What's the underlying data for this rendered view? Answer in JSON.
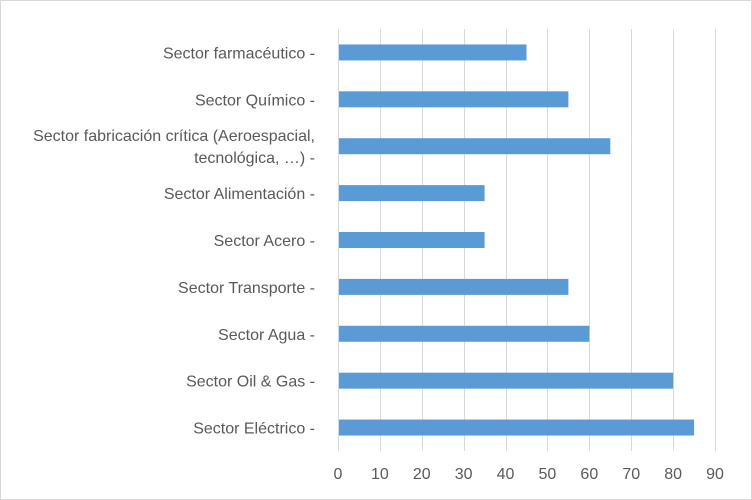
{
  "chart_data": {
    "type": "bar",
    "orientation": "horizontal",
    "title": "",
    "xlabel": "",
    "ylabel": "",
    "categories": [
      "Sector farmacéutico -",
      "Sector Químico -",
      "Sector fabricación crítica (Aeroespacial, tecnológica, …) -",
      "Sector Alimentación -",
      "Sector Acero -",
      "Sector Transporte -",
      "Sector Agua -",
      "Sector Oil & Gas -",
      "Sector Eléctrico -"
    ],
    "category_lines": [
      [
        "Sector farmacéutico -"
      ],
      [
        "Sector Químico -"
      ],
      [
        "Sector fabricación crítica (Aeroespacial,",
        "tecnológica, …) -"
      ],
      [
        "Sector Alimentación -"
      ],
      [
        "Sector Acero -"
      ],
      [
        "Sector Transporte -"
      ],
      [
        "Sector Agua -"
      ],
      [
        "Sector Oil & Gas -"
      ],
      [
        "Sector Eléctrico -"
      ]
    ],
    "values": [
      45,
      55,
      65,
      35,
      35,
      55,
      60,
      80,
      85
    ],
    "xlim": [
      0,
      90
    ],
    "xticks": [
      0,
      10,
      20,
      30,
      40,
      50,
      60,
      70,
      80,
      90
    ],
    "grid": "vertical",
    "legend": "none",
    "bar_color": "#5b9bd5",
    "grid_color": "#d9d9d9"
  }
}
